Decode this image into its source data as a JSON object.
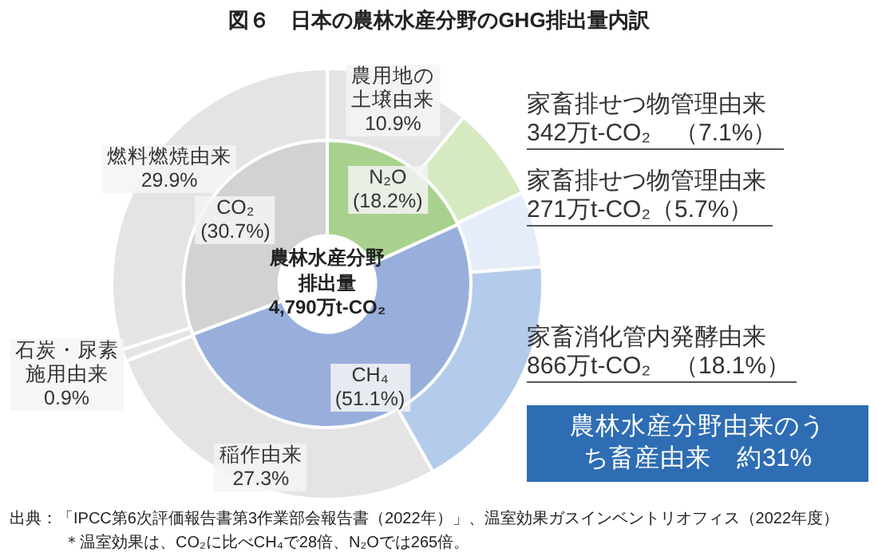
{
  "chart_data": [
    {
      "type": "donut",
      "title": "図６　日本の農林水産分野のGHG排出量内訳",
      "categories": [
        "農用地の土壌由来",
        "家畜排せつ物管理由来",
        "家畜排せつ物管理由来",
        "家畜消化管内発酵由来",
        "稲作由来",
        "石炭・尿素施用由来",
        "燃料燃焼由来"
      ],
      "values": [
        10.9,
        7.1,
        5.7,
        18.1,
        27.3,
        0.9,
        29.9
      ],
      "colors": [
        "#e4e4e4",
        "#d5eac0",
        "#e4edf9",
        "#b3cceb",
        "#e4e4e4",
        "#e4e4e4",
        "#e4e4e4"
      ],
      "value_labels": [
        "10.9%",
        "342万t-CO₂　（7.1%）",
        "271万t-CO₂（5.7%）",
        "866万t-CO₂　（18.1%）",
        "27.3%",
        "0.9%",
        "29.9%"
      ],
      "annotations": [
        "農林水産分野由来のうち畜産由来　約31%",
        "出典：「IPCC第6次評価報告書第3作業部会報告書（2022年）」、温室効果ガスインベントリオフィス（2022年度）",
        "＊温室効果は、CO₂に比べCH₄で28倍、N₂Oでは265倍。"
      ]
    },
    {
      "type": "donut",
      "categories": [
        "N₂O",
        "CH₄",
        "CO₂"
      ],
      "values": [
        18.2,
        51.1,
        30.7
      ],
      "colors": [
        "#a9d18e",
        "#98afdc",
        "#d2d2d2"
      ],
      "value_labels": [
        "(18.2%)",
        "(51.1%)",
        "(30.7%)"
      ],
      "annotations": [
        "農林水産分野排出量4,790万t-CO₂"
      ]
    }
  ]
}
